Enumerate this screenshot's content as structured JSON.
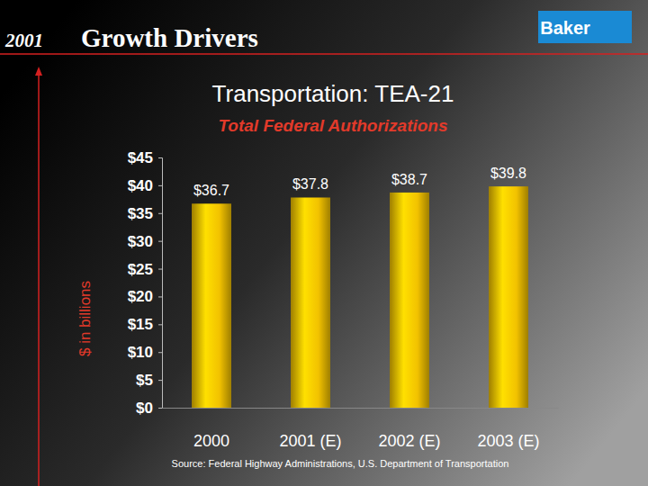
{
  "header": {
    "year": "2001",
    "title": "Growth Drivers",
    "logo": "Baker"
  },
  "footer": {
    "source": "Source:  Federal Highway Administrations, U.S. Department of Transportation"
  },
  "chart_data": {
    "type": "bar",
    "title": "Transportation:  TEA-21",
    "subtitle": "Total Federal Authorizations",
    "y_label": "$ in billions",
    "categories": [
      "2000",
      "2001 (E)",
      "2002 (E)",
      "2003 (E)"
    ],
    "values": [
      36.7,
      37.8,
      38.7,
      39.8
    ],
    "value_labels": [
      "$36.7",
      "$37.8",
      "$38.7",
      "$39.8"
    ],
    "data_labels": true,
    "color": "#f2c200",
    "grid": false,
    "ylim": [
      0,
      45
    ],
    "yticks": [
      {
        "value": 0,
        "label": "$0"
      },
      {
        "value": 5,
        "label": "$5"
      },
      {
        "value": 10,
        "label": "$10"
      },
      {
        "value": 15,
        "label": "$15"
      },
      {
        "value": 20,
        "label": "$20"
      },
      {
        "value": 25,
        "label": "$25"
      },
      {
        "value": 30,
        "label": "$30"
      },
      {
        "value": 35,
        "label": "$35"
      },
      {
        "value": 40,
        "label": "$40"
      },
      {
        "value": 45,
        "label": "$45"
      }
    ]
  }
}
